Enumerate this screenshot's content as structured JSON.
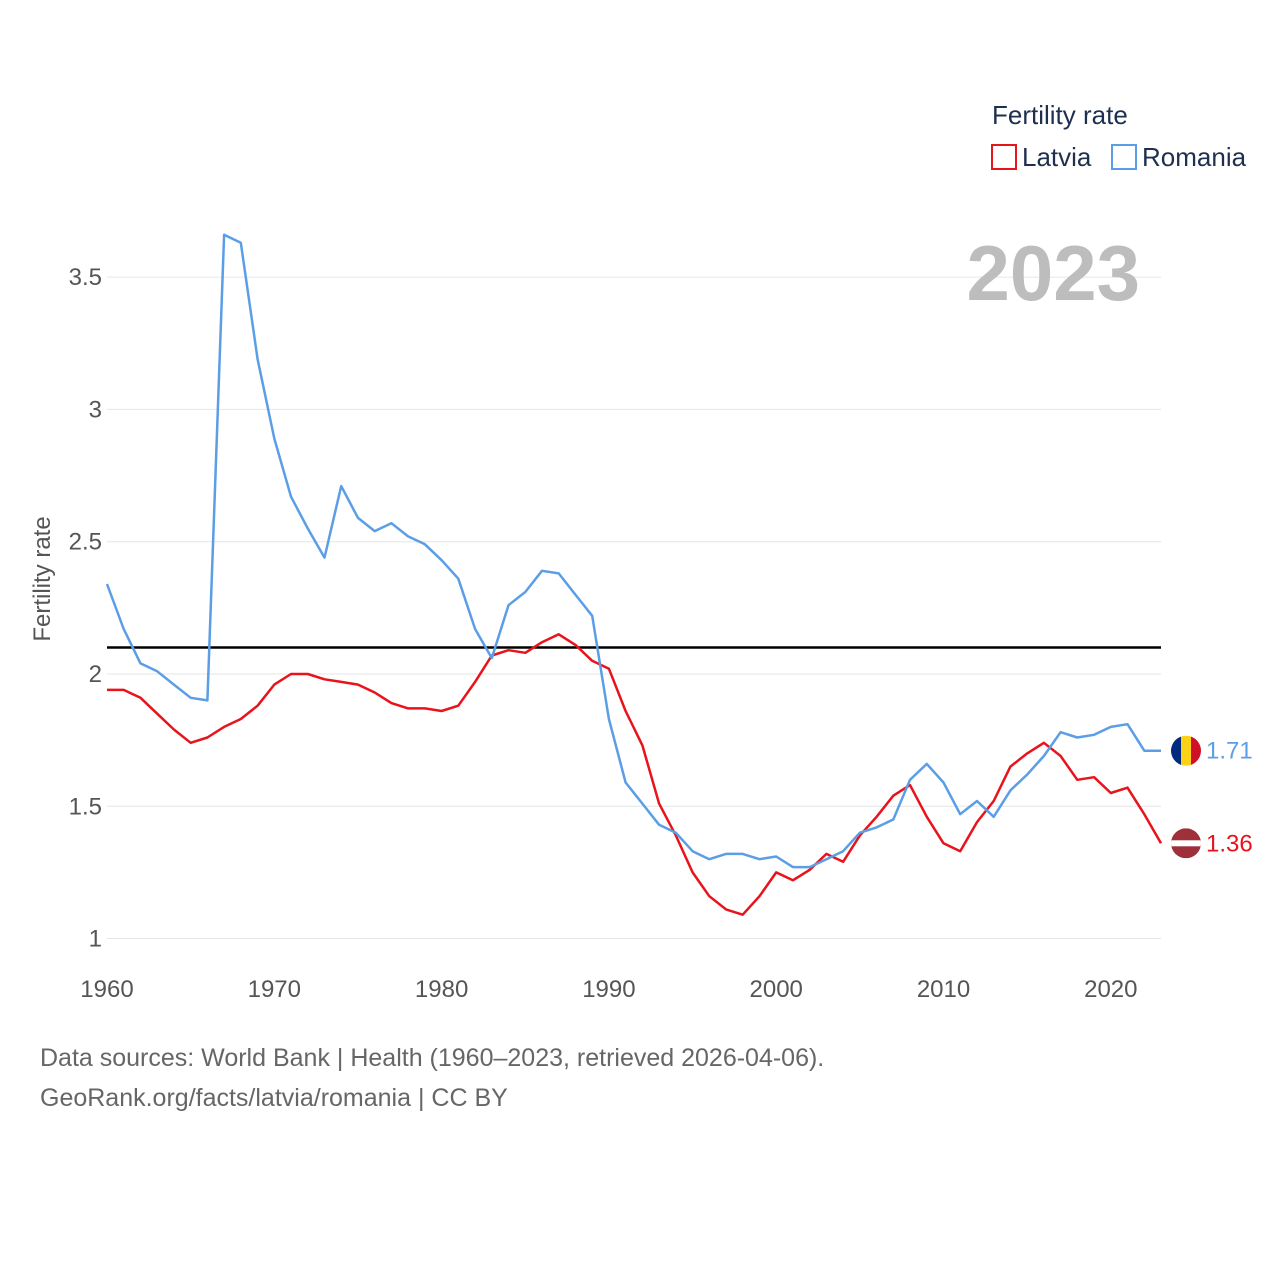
{
  "chart_data": {
    "type": "line",
    "year_label": "2023",
    "ylabel": "Fertility rate",
    "xlabel": "",
    "xlim": [
      1960,
      2023
    ],
    "ylim": [
      0.9,
      3.75
    ],
    "x_ticks": [
      1960,
      1970,
      1980,
      1990,
      2000,
      2010,
      2020
    ],
    "x_tick_labels": [
      "1960",
      "1970",
      "1980",
      "1990",
      "2000",
      "2010",
      "2020"
    ],
    "y_ticks": [
      1,
      1.5,
      2,
      2.5,
      3,
      3.5
    ],
    "y_tick_labels": [
      "1",
      "1.5",
      "2",
      "2.5",
      "3",
      "3.5"
    ],
    "reference_line": 2.1,
    "legend": {
      "title": "Fertility rate",
      "placement": "top-right"
    },
    "x": [
      1960,
      1961,
      1962,
      1963,
      1964,
      1965,
      1966,
      1967,
      1968,
      1969,
      1970,
      1971,
      1972,
      1973,
      1974,
      1975,
      1976,
      1977,
      1978,
      1979,
      1980,
      1981,
      1982,
      1983,
      1984,
      1985,
      1986,
      1987,
      1988,
      1989,
      1990,
      1991,
      1992,
      1993,
      1994,
      1995,
      1996,
      1997,
      1998,
      1999,
      2000,
      2001,
      2002,
      2003,
      2004,
      2005,
      2006,
      2007,
      2008,
      2009,
      2010,
      2011,
      2012,
      2013,
      2014,
      2015,
      2016,
      2017,
      2018,
      2019,
      2020,
      2021,
      2022,
      2023
    ],
    "series": [
      {
        "name": "Latvia",
        "color": "#e8131b",
        "end_label": "1.36",
        "flag": "latvia-flag",
        "values": [
          1.94,
          1.94,
          1.91,
          1.85,
          1.79,
          1.74,
          1.76,
          1.8,
          1.83,
          1.88,
          1.96,
          2.0,
          2.0,
          1.98,
          1.97,
          1.96,
          1.93,
          1.89,
          1.87,
          1.87,
          1.86,
          1.88,
          1.97,
          2.07,
          2.09,
          2.08,
          2.12,
          2.15,
          2.11,
          2.05,
          2.02,
          1.86,
          1.73,
          1.51,
          1.39,
          1.25,
          1.16,
          1.11,
          1.09,
          1.16,
          1.25,
          1.22,
          1.26,
          1.32,
          1.29,
          1.39,
          1.46,
          1.54,
          1.58,
          1.46,
          1.36,
          1.33,
          1.44,
          1.52,
          1.65,
          1.7,
          1.74,
          1.69,
          1.6,
          1.61,
          1.55,
          1.57,
          1.47,
          1.36
        ]
      },
      {
        "name": "Romania",
        "color": "#5b9ee6",
        "end_label": "1.71",
        "flag": "romania-flag",
        "values": [
          2.34,
          2.17,
          2.04,
          2.01,
          1.96,
          1.91,
          1.9,
          3.66,
          3.63,
          3.19,
          2.89,
          2.67,
          2.55,
          2.44,
          2.71,
          2.59,
          2.54,
          2.57,
          2.52,
          2.49,
          2.43,
          2.36,
          2.17,
          2.06,
          2.26,
          2.31,
          2.39,
          2.38,
          2.3,
          2.22,
          1.83,
          1.59,
          1.51,
          1.43,
          1.4,
          1.33,
          1.3,
          1.32,
          1.32,
          1.3,
          1.31,
          1.27,
          1.27,
          1.3,
          1.33,
          1.4,
          1.42,
          1.45,
          1.6,
          1.66,
          1.59,
          1.47,
          1.52,
          1.46,
          1.56,
          1.62,
          1.69,
          1.78,
          1.76,
          1.77,
          1.8,
          1.81,
          1.71,
          1.71
        ]
      }
    ]
  },
  "footer": {
    "line1": "Data sources: World Bank | Health (1960–2023, retrieved 2026-04-06).",
    "line2": "GeoRank.org/facts/latvia/romania | CC BY"
  }
}
